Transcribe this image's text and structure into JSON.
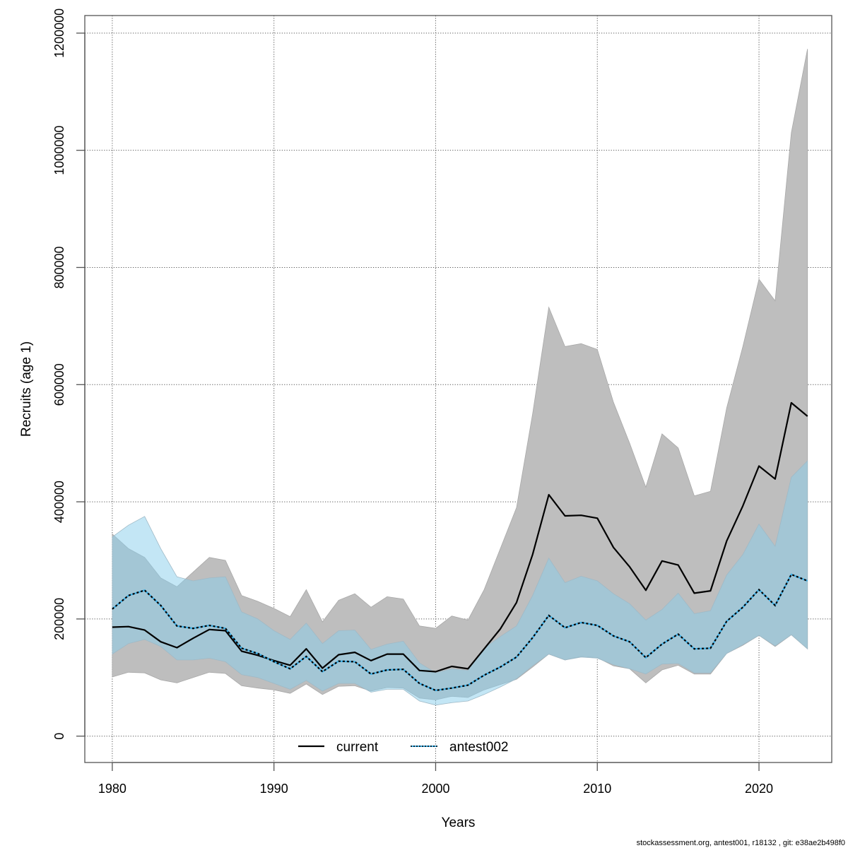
{
  "chart_data": {
    "type": "line",
    "title": "",
    "xlabel": "Years",
    "ylabel": "Recruits (age 1)",
    "xlim": [
      1978.3,
      2024.5
    ],
    "ylim": [
      -45000,
      1230000
    ],
    "grid": true,
    "legend_position": "bottom-center",
    "x_ticks": [
      1980,
      1990,
      2000,
      2010,
      2020
    ],
    "x_tick_labels": [
      "1980",
      "1990",
      "2000",
      "2010",
      "2020"
    ],
    "y_ticks": [
      0,
      200000,
      400000,
      600000,
      800000,
      1000000,
      1200000
    ],
    "y_tick_labels": [
      "0",
      "200000",
      "400000",
      "600000",
      "800000",
      "1000000",
      "1200000"
    ],
    "x": [
      1980,
      1981,
      1982,
      1983,
      1984,
      1985,
      1986,
      1987,
      1988,
      1989,
      1990,
      1991,
      1992,
      1993,
      1994,
      1995,
      1996,
      1997,
      1998,
      1999,
      2000,
      2001,
      2002,
      2003,
      2004,
      2005,
      2006,
      2007,
      2008,
      2009,
      2010,
      2011,
      2012,
      2013,
      2014,
      2015,
      2016,
      2017,
      2018,
      2019,
      2020,
      2021,
      2022,
      2023
    ],
    "series": [
      {
        "name": "current",
        "line_style": "solid",
        "color": "#000000",
        "band_color": "#bebebe",
        "values": [
          186000,
          187000,
          181000,
          161000,
          151000,
          167000,
          182000,
          180000,
          145000,
          138000,
          129000,
          121000,
          149000,
          116000,
          139000,
          143000,
          129000,
          140000,
          140000,
          112000,
          110000,
          119000,
          115000,
          149000,
          183000,
          228000,
          310000,
          412000,
          376000,
          377000,
          372000,
          322000,
          289000,
          249000,
          299000,
          292000,
          244000,
          248000,
          333000,
          393000,
          461000,
          439000,
          569000,
          546000
        ],
        "lower": [
          101000,
          109000,
          108000,
          96000,
          91000,
          100000,
          109000,
          107000,
          86000,
          82000,
          79000,
          73000,
          89000,
          71000,
          85000,
          86000,
          77000,
          83000,
          82000,
          65000,
          62000,
          68000,
          66000,
          79000,
          88000,
          97000,
          118000,
          140000,
          130000,
          136000,
          134000,
          120000,
          115000,
          91000,
          113000,
          121000,
          106000,
          106000,
          141000,
          155000,
          172000,
          153000,
          173000,
          149000
        ],
        "upper": [
          345000,
          320000,
          305000,
          270000,
          255000,
          280000,
          305000,
          300000,
          240000,
          230000,
          218000,
          204000,
          250000,
          195000,
          232000,
          243000,
          220000,
          238000,
          234000,
          188000,
          184000,
          205000,
          198000,
          250000,
          320000,
          390000,
          550000,
          732000,
          665000,
          670000,
          660000,
          570000,
          500000,
          425000,
          516000,
          492000,
          410000,
          418000,
          560000,
          665000,
          780000,
          743000,
          1030000,
          1173000
        ]
      },
      {
        "name": "antest002",
        "line_style": "dotted",
        "color": "#3aaee6",
        "band_color": "#87ceeb",
        "values": [
          217000,
          240000,
          249000,
          223000,
          188000,
          184000,
          189000,
          184000,
          150000,
          141000,
          127000,
          115000,
          136000,
          110000,
          128000,
          127000,
          106000,
          113000,
          114000,
          90000,
          78000,
          82000,
          87000,
          104000,
          118000,
          135000,
          168000,
          206000,
          185000,
          194000,
          189000,
          171000,
          161000,
          134000,
          157000,
          174000,
          149000,
          150000,
          196000,
          220000,
          250000,
          223000,
          276000,
          265000
        ],
        "lower": [
          140000,
          158000,
          165000,
          153000,
          130000,
          130000,
          133000,
          127000,
          105000,
          100000,
          90000,
          80000,
          95000,
          77000,
          90000,
          90000,
          75000,
          80000,
          80000,
          60000,
          53000,
          57000,
          60000,
          71000,
          84000,
          98000,
          120000,
          140000,
          130000,
          135000,
          133000,
          122000,
          115000,
          106000,
          123000,
          124000,
          108000,
          108000,
          141000,
          156000,
          172000,
          154000,
          173000,
          149000
        ],
        "upper": [
          340000,
          360000,
          375000,
          320000,
          272000,
          265000,
          270000,
          272000,
          212000,
          200000,
          180000,
          165000,
          193000,
          158000,
          180000,
          181000,
          148000,
          157000,
          162000,
          125000,
          108000,
          115000,
          112000,
          150000,
          170000,
          188000,
          240000,
          304000,
          262000,
          273000,
          265000,
          243000,
          226000,
          198000,
          216000,
          244000,
          209000,
          214000,
          275000,
          310000,
          362000,
          324000,
          442000,
          470000
        ]
      }
    ]
  },
  "legend": {
    "items": [
      {
        "label": "current"
      },
      {
        "label": "antest002"
      }
    ]
  },
  "footer": {
    "text": "stockassessment.org, antest001, r18132 , git: e38ae2b498f0"
  }
}
